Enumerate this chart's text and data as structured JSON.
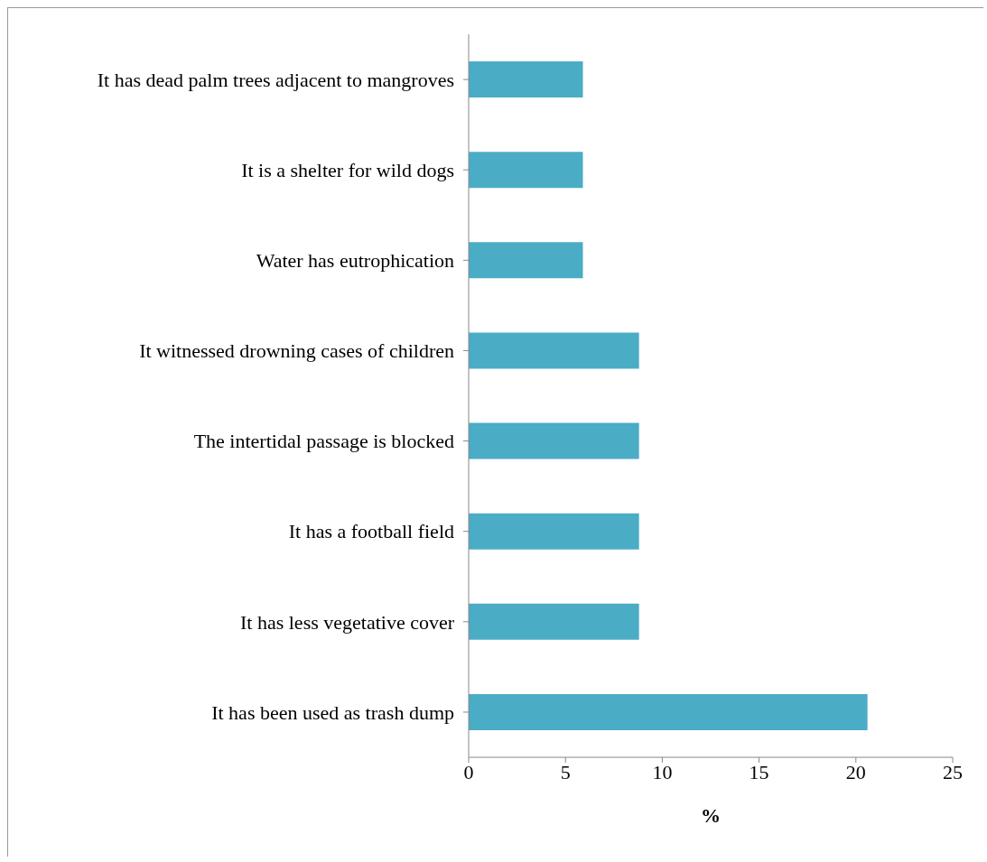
{
  "chart_data": {
    "type": "bar",
    "orientation": "horizontal",
    "xlabel": "%",
    "categories": [
      "It has dead palm trees adjacent to mangroves",
      "It is a shelter for wild dogs",
      "Water has eutrophication",
      "It witnessed drowning cases of children",
      "The intertidal passage is blocked",
      "It has a football field",
      "It has less vegetative cover",
      "It has been used as trash dump"
    ],
    "values": [
      5.9,
      5.9,
      5.9,
      8.8,
      8.8,
      8.8,
      8.8,
      20.6
    ],
    "color": "#4bacc6",
    "xlim": [
      0,
      25
    ],
    "xticks": [
      0,
      5,
      10,
      15,
      20,
      25
    ],
    "grid": false,
    "legend": false
  }
}
